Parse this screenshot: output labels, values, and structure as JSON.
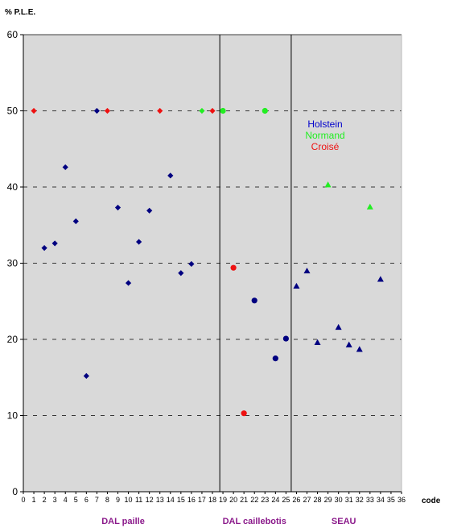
{
  "chart_data": {
    "type": "scatter",
    "title": "",
    "ylabel": "% P.L.E.",
    "xlabel": "code",
    "xlim": [
      0,
      36
    ],
    "ylim": [
      0,
      60
    ],
    "x_ticks": [
      0,
      1,
      2,
      3,
      4,
      5,
      6,
      7,
      8,
      9,
      10,
      11,
      12,
      13,
      14,
      15,
      16,
      17,
      18,
      19,
      20,
      21,
      22,
      23,
      24,
      25,
      26,
      27,
      28,
      29,
      30,
      31,
      32,
      33,
      34,
      35,
      36
    ],
    "y_ticks": [
      0,
      10,
      20,
      30,
      40,
      50,
      60
    ],
    "grid": "horizontal dashed",
    "section_dividers": [
      18.7,
      25.5
    ],
    "groups": [
      {
        "label": "DAL paille",
        "color": "#8B1A8B",
        "x_center": 9.5
      },
      {
        "label": "DAL caillebotis",
        "color": "#8B1A8B",
        "x_center": 22
      },
      {
        "label": "SEAU",
        "color": "#8B1A8B",
        "x_center": 30.5
      }
    ],
    "legend": {
      "placement": "right-middle",
      "entries": [
        {
          "name": "Holstein",
          "color": "#0000CC"
        },
        {
          "name": "Normand",
          "color": "#22EE22"
        },
        {
          "name": "Croisé",
          "color": "#EE1111"
        }
      ]
    },
    "series": [
      {
        "name": "Holstein",
        "color": "#000080",
        "marker": "diamond",
        "points": [
          {
            "x": 2,
            "y": 32
          },
          {
            "x": 3,
            "y": 32.6
          },
          {
            "x": 4,
            "y": 42.6
          },
          {
            "x": 5,
            "y": 35.5
          },
          {
            "x": 6,
            "y": 15.2
          },
          {
            "x": 7,
            "y": 50
          },
          {
            "x": 9,
            "y": 37.3
          },
          {
            "x": 10,
            "y": 27.4
          },
          {
            "x": 11,
            "y": 32.8
          },
          {
            "x": 12,
            "y": 36.9
          },
          {
            "x": 14,
            "y": 41.5
          },
          {
            "x": 15,
            "y": 28.7
          },
          {
            "x": 16,
            "y": 29.9
          }
        ]
      },
      {
        "name": "Croisé",
        "color": "#EE1111",
        "marker": "diamond",
        "points": [
          {
            "x": 1,
            "y": 50
          },
          {
            "x": 8,
            "y": 50
          },
          {
            "x": 13,
            "y": 50
          },
          {
            "x": 18,
            "y": 50
          }
        ]
      },
      {
        "name": "Normand",
        "color": "#22EE22",
        "marker": "diamond",
        "points": [
          {
            "x": 17,
            "y": 50
          }
        ]
      },
      {
        "name": "Holstein",
        "color": "#000080",
        "marker": "circle",
        "points": [
          {
            "x": 22,
            "y": 25.1
          },
          {
            "x": 24,
            "y": 17.5
          },
          {
            "x": 25,
            "y": 20.1
          }
        ]
      },
      {
        "name": "Normand",
        "color": "#22EE22",
        "marker": "circle",
        "points": [
          {
            "x": 19,
            "y": 50
          },
          {
            "x": 23,
            "y": 50
          }
        ]
      },
      {
        "name": "Croisé",
        "color": "#EE1111",
        "marker": "circle",
        "points": [
          {
            "x": 20,
            "y": 29.4
          },
          {
            "x": 21,
            "y": 10.3
          }
        ]
      },
      {
        "name": "Holstein",
        "color": "#000080",
        "marker": "triangle",
        "points": [
          {
            "x": 26,
            "y": 27
          },
          {
            "x": 27,
            "y": 29
          },
          {
            "x": 28,
            "y": 19.6
          },
          {
            "x": 30,
            "y": 21.6
          },
          {
            "x": 31,
            "y": 19.3
          },
          {
            "x": 32,
            "y": 18.7
          },
          {
            "x": 34,
            "y": 27.9
          }
        ]
      },
      {
        "name": "Normand",
        "color": "#22EE22",
        "marker": "triangle",
        "points": [
          {
            "x": 29,
            "y": 40.3
          },
          {
            "x": 33,
            "y": 37.4
          }
        ]
      }
    ]
  }
}
